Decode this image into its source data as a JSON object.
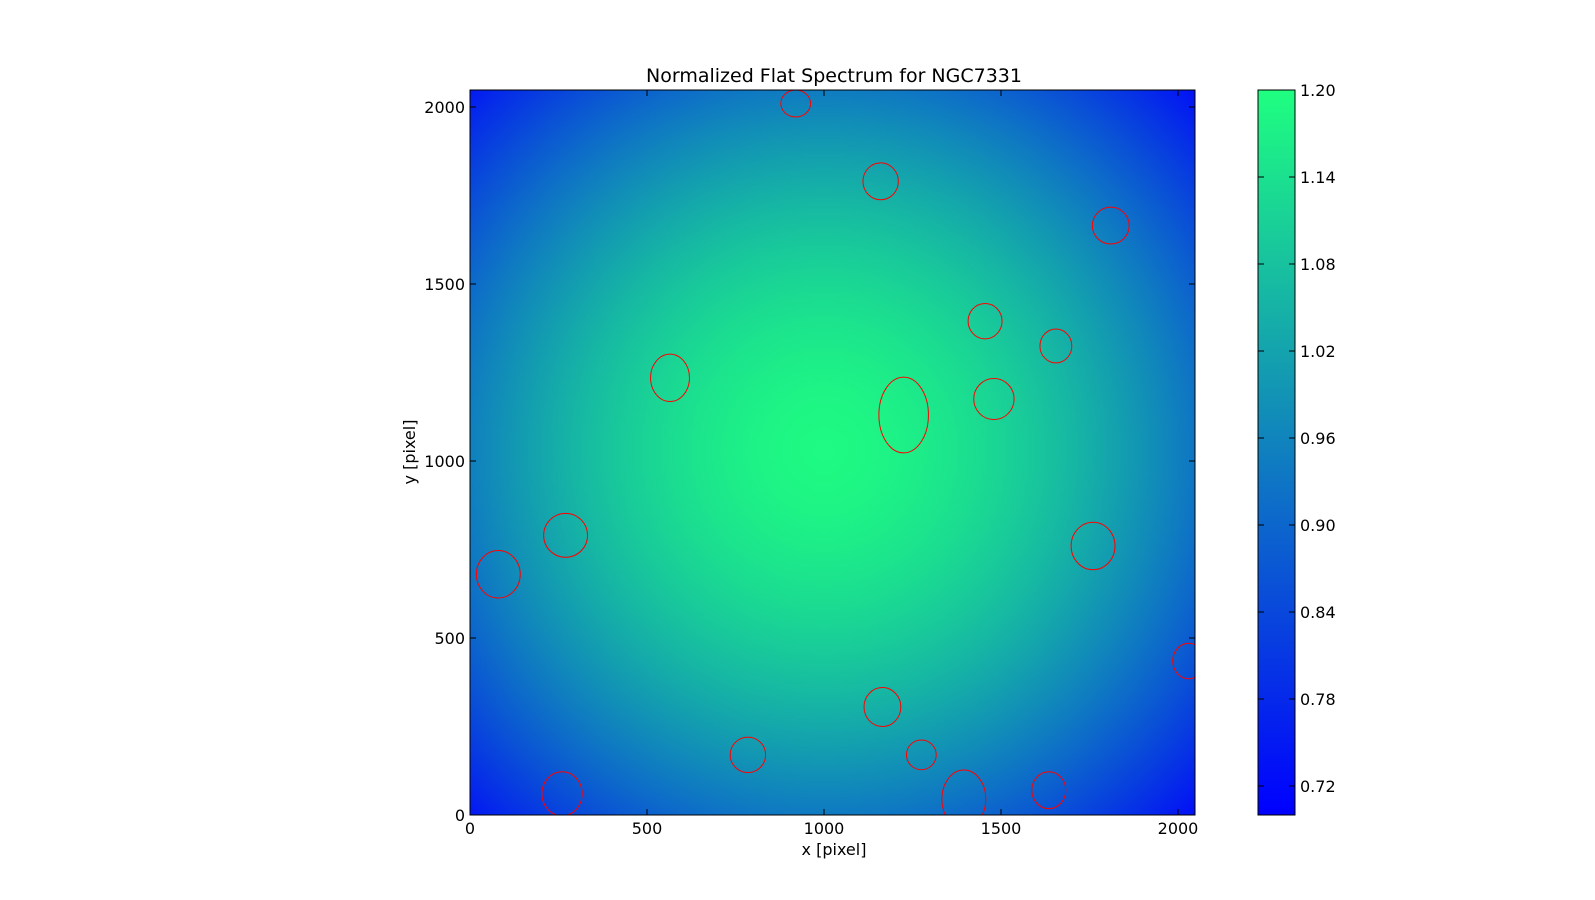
{
  "chart_data": {
    "type": "heatmap",
    "title": "Normalized Flat Spectrum for NGC7331",
    "xlabel": "x [pixel]",
    "ylabel": "y [pixel]",
    "xlim": [
      0,
      2048
    ],
    "ylim": [
      0,
      2048
    ],
    "xticks": [
      "0",
      "500",
      "1000",
      "1500",
      "2000"
    ],
    "xtick_values": [
      0,
      500,
      1000,
      1500,
      2000
    ],
    "yticks": [
      "0",
      "500",
      "1000",
      "1500",
      "2000"
    ],
    "ytick_values": [
      0,
      500,
      1000,
      1500,
      2000
    ],
    "colormap": "winter",
    "colormap_endpoints": [
      "#0000ff",
      "#1fff80"
    ],
    "color_range": [
      0.7,
      1.2
    ],
    "colorbar_ticks": [
      "0.72",
      "0.78",
      "0.84",
      "0.90",
      "0.96",
      "1.02",
      "1.08",
      "1.14",
      "1.20"
    ],
    "colorbar_tick_values": [
      0.72,
      0.78,
      0.84,
      0.9,
      0.96,
      1.02,
      1.08,
      1.14,
      1.2
    ],
    "field_center": [
      1000,
      1030
    ],
    "center_value": 1.19,
    "corner_value": 0.74,
    "marker_color": "#ff0000",
    "markers": [
      {
        "x": 920,
        "y": 2010,
        "rx": 42,
        "ry": 38
      },
      {
        "x": 1160,
        "y": 1790,
        "rx": 50,
        "ry": 52
      },
      {
        "x": 1810,
        "y": 1665,
        "rx": 52,
        "ry": 52
      },
      {
        "x": 1455,
        "y": 1395,
        "rx": 48,
        "ry": 50
      },
      {
        "x": 1655,
        "y": 1325,
        "rx": 45,
        "ry": 48
      },
      {
        "x": 565,
        "y": 1235,
        "rx": 55,
        "ry": 67
      },
      {
        "x": 1225,
        "y": 1130,
        "rx": 70,
        "ry": 107
      },
      {
        "x": 1480,
        "y": 1175,
        "rx": 57,
        "ry": 58
      },
      {
        "x": 270,
        "y": 790,
        "rx": 62,
        "ry": 62
      },
      {
        "x": 80,
        "y": 680,
        "rx": 62,
        "ry": 67
      },
      {
        "x": 1760,
        "y": 760,
        "rx": 62,
        "ry": 67
      },
      {
        "x": 2030,
        "y": 435,
        "rx": 45,
        "ry": 50
      },
      {
        "x": 1165,
        "y": 305,
        "rx": 52,
        "ry": 55
      },
      {
        "x": 785,
        "y": 170,
        "rx": 50,
        "ry": 50
      },
      {
        "x": 1275,
        "y": 170,
        "rx": 42,
        "ry": 42
      },
      {
        "x": 260,
        "y": 60,
        "rx": 57,
        "ry": 62
      },
      {
        "x": 1395,
        "y": 45,
        "rx": 62,
        "ry": 82
      },
      {
        "x": 1635,
        "y": 70,
        "rx": 48,
        "ry": 52
      }
    ]
  }
}
